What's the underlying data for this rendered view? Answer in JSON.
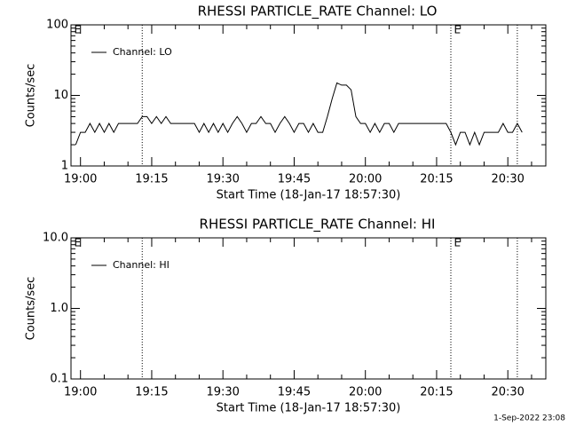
{
  "chart_data": [
    {
      "type": "line",
      "title": "RHESSI PARTICLE_RATE Channel: LO",
      "xlabel": "Start Time (18-Jan-17 18:57:30)",
      "ylabel": "Counts/sec",
      "log_y": true,
      "ylim": [
        1,
        100
      ],
      "yticks": [
        1,
        10,
        100
      ],
      "xlim": [
        "18:58",
        "20:38"
      ],
      "xticks": [
        "19:00",
        "19:15",
        "19:30",
        "19:45",
        "20:00",
        "20:15",
        "20:30"
      ],
      "legend": "upper left",
      "vlines": [
        "19:13",
        "20:18",
        "20:32"
      ],
      "annotations": [
        {
          "text": "E",
          "x": "18:59"
        },
        {
          "text": "E",
          "x": "20:19"
        }
      ],
      "x": [
        "18:59",
        "19:00",
        "19:01",
        "19:02",
        "19:03",
        "19:04",
        "19:05",
        "19:06",
        "19:07",
        "19:08",
        "19:09",
        "19:10",
        "19:11",
        "19:12",
        "19:13",
        "19:14",
        "19:15",
        "19:16",
        "19:17",
        "19:18",
        "19:19",
        "19:20",
        "19:21",
        "19:22",
        "19:23",
        "19:24",
        "19:25",
        "19:26",
        "19:27",
        "19:28",
        "19:29",
        "19:30",
        "19:31",
        "19:32",
        "19:33",
        "19:34",
        "19:35",
        "19:36",
        "19:37",
        "19:38",
        "19:39",
        "19:40",
        "19:41",
        "19:42",
        "19:43",
        "19:44",
        "19:45",
        "19:46",
        "19:47",
        "19:48",
        "19:49",
        "19:50",
        "19:51",
        "19:52",
        "19:53",
        "19:54",
        "19:55",
        "19:56",
        "19:57",
        "19:58",
        "19:59",
        "20:00",
        "20:01",
        "20:02",
        "20:03",
        "20:04",
        "20:05",
        "20:06",
        "20:07",
        "20:08",
        "20:09",
        "20:10",
        "20:11",
        "20:12",
        "20:13",
        "20:14",
        "20:15",
        "20:16",
        "20:17",
        "20:18",
        "20:19",
        "20:20",
        "20:21",
        "20:22",
        "20:23",
        "20:24",
        "20:25",
        "20:26",
        "20:27",
        "20:28",
        "20:29",
        "20:30",
        "20:31",
        "20:32",
        "20:33"
      ],
      "series": [
        {
          "name": "Channel: LO",
          "color": "#000000",
          "values": [
            2,
            3,
            3,
            4,
            3,
            4,
            3,
            4,
            3,
            4,
            4,
            4,
            4,
            4,
            5,
            5,
            4,
            5,
            4,
            5,
            4,
            4,
            4,
            4,
            4,
            4,
            3,
            4,
            3,
            4,
            3,
            4,
            3,
            4,
            5,
            4,
            3,
            4,
            4,
            5,
            4,
            4,
            3,
            4,
            5,
            4,
            3,
            4,
            4,
            3,
            4,
            3,
            3,
            5,
            9,
            15,
            14,
            14,
            12,
            5,
            4,
            4,
            3,
            4,
            3,
            4,
            4,
            3,
            4,
            4,
            4,
            4,
            4,
            4,
            4,
            4,
            4,
            4,
            4,
            3,
            2,
            3,
            3,
            2,
            3,
            2,
            3,
            3,
            3,
            3,
            4,
            3,
            3,
            4,
            3
          ]
        }
      ]
    },
    {
      "type": "line",
      "title": "RHESSI PARTICLE_RATE Channel: HI",
      "xlabel": "Start Time (18-Jan-17 18:57:30)",
      "ylabel": "Counts/sec",
      "log_y": true,
      "ylim": [
        0.1,
        10
      ],
      "yticks": [
        0.1,
        {
          "value": 1,
          "label": "1.0"
        },
        {
          "value": 10,
          "label": "10.0"
        }
      ],
      "xlim": [
        "18:58",
        "20:38"
      ],
      "xticks": [
        "19:00",
        "19:15",
        "19:30",
        "19:45",
        "20:00",
        "20:15",
        "20:30"
      ],
      "legend": "upper left",
      "vlines": [
        "19:13",
        "20:18",
        "20:32"
      ],
      "annotations": [
        {
          "text": "E",
          "x": "18:59"
        },
        {
          "text": "E",
          "x": "20:19"
        }
      ],
      "x": [],
      "series": [
        {
          "name": "Channel: HI",
          "color": "#000000",
          "values": []
        }
      ]
    }
  ],
  "footer": "1-Sep-2022 23:08"
}
